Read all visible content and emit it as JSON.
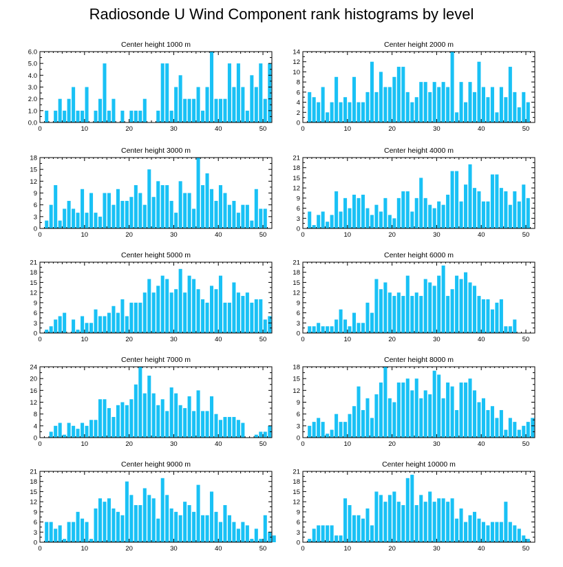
{
  "title": "Radiosonde U Wind Component rank histograms by level",
  "colors": {
    "bar": "#19c1f5",
    "axis": "#000000"
  },
  "chart_data": [
    {
      "type": "bar",
      "title": "Center height 1000 m",
      "xlim": [
        0,
        52
      ],
      "xticks": [
        0,
        10,
        20,
        30,
        40,
        50
      ],
      "ylim": [
        0,
        6
      ],
      "yticks": [
        "0.0",
        "1.0",
        "2.0",
        "3.0",
        "4.0",
        "5.0",
        "6.0"
      ],
      "values": [
        0,
        1,
        0,
        1,
        2,
        1,
        2,
        3,
        1,
        1,
        3,
        0,
        1,
        2,
        5,
        1,
        2,
        0,
        1,
        0,
        1,
        1,
        1,
        2,
        0,
        0,
        1,
        5,
        5,
        1,
        3,
        4,
        2,
        2,
        2,
        3,
        1,
        3,
        6,
        2,
        2,
        2,
        5,
        3,
        5,
        3,
        1,
        4,
        3,
        5,
        2,
        5,
        0
      ]
    },
    {
      "type": "bar",
      "title": "Center height 2000 m",
      "xlim": [
        0,
        52
      ],
      "xticks": [
        0,
        10,
        20,
        30,
        40,
        50
      ],
      "ylim": [
        0,
        14
      ],
      "yticks": [
        "0",
        "2",
        "4",
        "6",
        "8",
        "10",
        "12",
        "14"
      ],
      "values": [
        0,
        6,
        5,
        4,
        7,
        2,
        4,
        9,
        4,
        5,
        4,
        9,
        4,
        4,
        6,
        12,
        6,
        10,
        7,
        7,
        9,
        11,
        11,
        6,
        4,
        5,
        8,
        8,
        6,
        8,
        7,
        8,
        7,
        14,
        2,
        8,
        4,
        8,
        6,
        12,
        7,
        5,
        7,
        2,
        7,
        5,
        11,
        6,
        3,
        6,
        4,
        0,
        0
      ]
    },
    {
      "type": "bar",
      "title": "Center height 3000 m",
      "xlim": [
        0,
        52
      ],
      "xticks": [
        0,
        10,
        20,
        30,
        40,
        50
      ],
      "ylim": [
        0,
        18
      ],
      "yticks": [
        "0",
        "3",
        "6",
        "9",
        "12",
        "15",
        "18"
      ],
      "values": [
        0,
        2,
        6,
        11,
        2,
        5,
        7,
        5,
        4,
        10,
        4,
        9,
        4,
        3,
        9,
        9,
        6,
        10,
        7,
        7,
        8,
        11,
        9,
        6,
        15,
        8,
        12,
        11,
        11,
        7,
        4,
        12,
        9,
        9,
        5,
        18,
        11,
        14,
        10,
        7,
        11,
        9,
        6,
        7,
        4,
        6,
        6,
        2,
        10,
        5,
        5,
        0,
        0
      ]
    },
    {
      "type": "bar",
      "title": "Center height 4000 m",
      "xlim": [
        0,
        52
      ],
      "xticks": [
        0,
        10,
        20,
        30,
        40,
        50
      ],
      "ylim": [
        0,
        21
      ],
      "yticks": [
        "0",
        "3",
        "6",
        "9",
        "12",
        "15",
        "18",
        "21"
      ],
      "values": [
        0,
        5,
        1,
        4,
        5,
        2,
        4,
        11,
        5,
        9,
        6,
        10,
        9,
        10,
        6,
        4,
        7,
        5,
        9,
        4,
        3,
        9,
        11,
        11,
        5,
        9,
        15,
        9,
        7,
        6,
        8,
        7,
        10,
        17,
        17,
        8,
        13,
        19,
        12,
        11,
        8,
        8,
        16,
        16,
        12,
        11,
        7,
        11,
        8,
        13,
        9,
        0,
        0
      ]
    },
    {
      "type": "bar",
      "title": "Center height 5000 m",
      "xlim": [
        0,
        52
      ],
      "xticks": [
        0,
        10,
        20,
        30,
        40,
        50
      ],
      "ylim": [
        0,
        21
      ],
      "yticks": [
        "0",
        "3",
        "6",
        "9",
        "12",
        "15",
        "18",
        "21"
      ],
      "values": [
        0,
        1,
        2,
        4,
        5,
        6,
        0,
        4,
        1,
        5,
        3,
        3,
        7,
        5,
        5,
        6,
        8,
        6,
        10,
        5,
        9,
        9,
        9,
        12,
        16,
        12,
        14,
        17,
        16,
        12,
        13,
        19,
        12,
        17,
        16,
        13,
        10,
        9,
        14,
        13,
        17,
        9,
        9,
        15,
        12,
        11,
        12,
        9,
        10,
        10,
        4,
        5,
        0
      ]
    },
    {
      "type": "bar",
      "title": "Center height 6000 m",
      "xlim": [
        0,
        52
      ],
      "xticks": [
        0,
        10,
        20,
        30,
        40,
        50
      ],
      "ylim": [
        0,
        21
      ],
      "yticks": [
        "0",
        "3",
        "6",
        "9",
        "12",
        "15",
        "18",
        "21"
      ],
      "values": [
        0,
        2,
        2,
        3,
        2,
        2,
        2,
        4,
        7,
        4,
        2,
        6,
        3,
        3,
        9,
        6,
        16,
        13,
        15,
        12,
        11,
        12,
        11,
        17,
        11,
        12,
        11,
        16,
        15,
        14,
        17,
        20,
        11,
        13,
        17,
        16,
        18,
        15,
        14,
        11,
        10,
        10,
        7,
        9,
        10,
        2,
        2,
        4,
        0,
        0,
        0,
        0,
        0
      ]
    },
    {
      "type": "bar",
      "title": "Center height 7000 m",
      "xlim": [
        0,
        52
      ],
      "xticks": [
        0,
        10,
        20,
        30,
        40,
        50
      ],
      "ylim": [
        0,
        24
      ],
      "yticks": [
        "0",
        "4",
        "8",
        "12",
        "16",
        "20",
        "24"
      ],
      "values": [
        0,
        0,
        2,
        4,
        5,
        1,
        5,
        4,
        3,
        5,
        4,
        6,
        6,
        13,
        13,
        10,
        7,
        11,
        12,
        11,
        13,
        18,
        24,
        15,
        21,
        15,
        11,
        13,
        9,
        17,
        15,
        11,
        10,
        14,
        9,
        16,
        9,
        9,
        14,
        8,
        6,
        7,
        7,
        7,
        6,
        5,
        0,
        0,
        1,
        2,
        2,
        4,
        0
      ]
    },
    {
      "type": "bar",
      "title": "Center height 8000 m",
      "xlim": [
        0,
        52
      ],
      "xticks": [
        0,
        10,
        20,
        30,
        40,
        50
      ],
      "ylim": [
        0,
        18
      ],
      "yticks": [
        "0",
        "3",
        "6",
        "9",
        "12",
        "15",
        "18"
      ],
      "values": [
        0,
        3,
        4,
        5,
        4,
        1,
        2,
        6,
        4,
        4,
        6,
        8,
        13,
        7,
        10,
        5,
        11,
        14,
        18,
        10,
        9,
        14,
        14,
        15,
        12,
        15,
        10,
        12,
        11,
        17,
        16,
        10,
        14,
        13,
        7,
        14,
        14,
        15,
        12,
        9,
        10,
        7,
        8,
        5,
        7,
        2,
        5,
        4,
        2,
        3,
        4,
        5,
        0
      ]
    },
    {
      "type": "bar",
      "title": "Center height 9000 m",
      "xlim": [
        0,
        52
      ],
      "xticks": [
        0,
        10,
        20,
        30,
        40,
        50
      ],
      "ylim": [
        0,
        21
      ],
      "yticks": [
        "0",
        "3",
        "6",
        "9",
        "12",
        "15",
        "18",
        "21"
      ],
      "values": [
        0,
        6,
        6,
        4,
        5,
        1,
        6,
        6,
        9,
        7,
        6,
        1,
        10,
        13,
        12,
        13,
        10,
        9,
        8,
        18,
        14,
        11,
        11,
        16,
        14,
        13,
        7,
        19,
        14,
        10,
        9,
        8,
        12,
        11,
        9,
        17,
        8,
        8,
        15,
        9,
        6,
        11,
        8,
        6,
        4,
        6,
        5,
        1,
        4,
        1,
        8,
        3,
        2
      ]
    },
    {
      "type": "bar",
      "title": "Center height 10000 m",
      "xlim": [
        0,
        52
      ],
      "xticks": [
        0,
        10,
        20,
        30,
        40,
        50
      ],
      "ylim": [
        0,
        21
      ],
      "yticks": [
        "0",
        "3",
        "6",
        "9",
        "12",
        "15",
        "18",
        "21"
      ],
      "values": [
        0,
        1,
        4,
        5,
        5,
        5,
        5,
        2,
        2,
        13,
        11,
        8,
        8,
        7,
        10,
        5,
        15,
        14,
        12,
        14,
        15,
        12,
        11,
        19,
        20,
        11,
        14,
        12,
        15,
        12,
        13,
        13,
        12,
        13,
        7,
        10,
        6,
        8,
        9,
        7,
        6,
        5,
        6,
        6,
        6,
        12,
        6,
        5,
        4,
        2,
        1,
        0,
        0
      ]
    }
  ]
}
